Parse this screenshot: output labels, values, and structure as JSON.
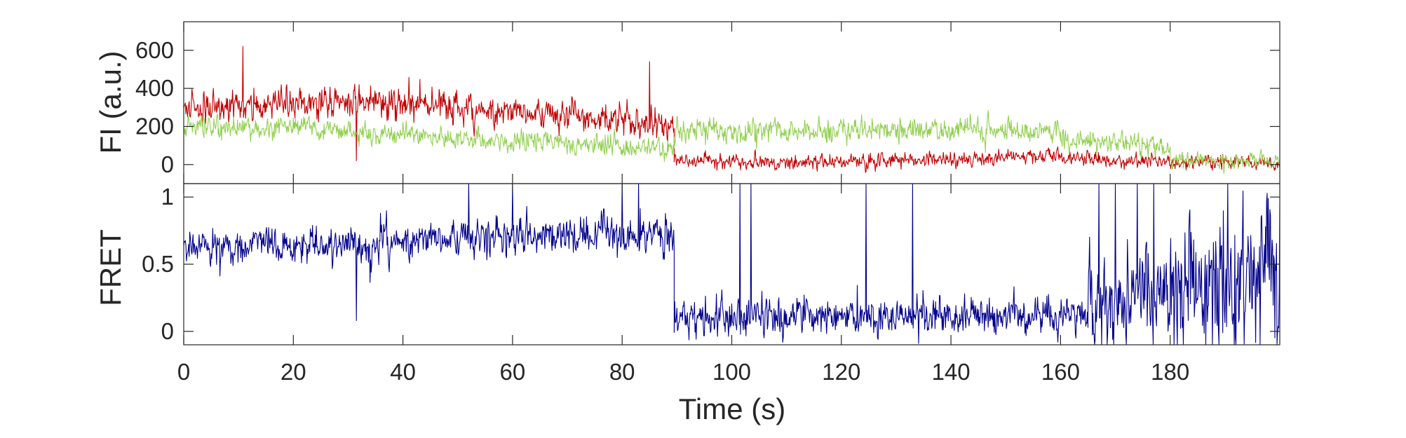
{
  "chart_data": [
    {
      "type": "line",
      "panel": "top",
      "ylabel": "FI (a.u.)",
      "xlim": [
        0,
        200
      ],
      "ylim": [
        -100,
        750
      ],
      "yticks": [
        0,
        200,
        400,
        600
      ],
      "grid": false,
      "series": [
        {
          "color": "#c00000",
          "segments": [
            {
              "x_start": 0,
              "x_end": 10,
              "mean_start": 300,
              "mean_end": 300,
              "noise": 60,
              "seed": 11
            },
            {
              "x_start": 10,
              "x_end": 30,
              "mean_start": 300,
              "mean_end": 330,
              "noise": 60,
              "seed": 12
            },
            {
              "x_start": 30,
              "x_end": 50,
              "mean_start": 330,
              "mean_end": 300,
              "noise": 60,
              "seed": 13
            },
            {
              "x_start": 50,
              "x_end": 70,
              "mean_start": 290,
              "mean_end": 250,
              "noise": 55,
              "seed": 14
            },
            {
              "x_start": 70,
              "x_end": 89.5,
              "mean_start": 250,
              "mean_end": 210,
              "noise": 55,
              "seed": 15
            },
            {
              "x_start": 89.5,
              "x_end": 110,
              "mean_start": 20,
              "mean_end": 10,
              "noise": 28,
              "seed": 16
            },
            {
              "x_start": 110,
              "x_end": 160,
              "mean_start": 10,
              "mean_end": 40,
              "noise": 28,
              "seed": 17
            },
            {
              "x_start": 160,
              "x_end": 200,
              "mean_start": 30,
              "mean_end": 0,
              "noise": 28,
              "seed": 18
            }
          ],
          "spikes": [
            [
              10.8,
              620
            ],
            [
              31.5,
              20
            ],
            [
              85,
              540
            ]
          ]
        },
        {
          "color": "#92d050",
          "segments": [
            {
              "x_start": 0,
              "x_end": 20,
              "mean_start": 200,
              "mean_end": 190,
              "noise": 40,
              "seed": 21
            },
            {
              "x_start": 20,
              "x_end": 45,
              "mean_start": 190,
              "mean_end": 150,
              "noise": 40,
              "seed": 22
            },
            {
              "x_start": 45,
              "x_end": 70,
              "mean_start": 150,
              "mean_end": 110,
              "noise": 40,
              "seed": 23
            },
            {
              "x_start": 70,
              "x_end": 89.5,
              "mean_start": 110,
              "mean_end": 80,
              "noise": 40,
              "seed": 24
            },
            {
              "x_start": 89.5,
              "x_end": 130,
              "mean_start": 170,
              "mean_end": 180,
              "noise": 45,
              "seed": 25
            },
            {
              "x_start": 130,
              "x_end": 160,
              "mean_start": 180,
              "mean_end": 180,
              "noise": 45,
              "seed": 26
            },
            {
              "x_start": 160,
              "x_end": 180,
              "mean_start": 130,
              "mean_end": 100,
              "noise": 40,
              "seed": 27
            },
            {
              "x_start": 180,
              "x_end": 200,
              "mean_start": 20,
              "mean_end": 20,
              "noise": 28,
              "seed": 28
            }
          ],
          "spikes": []
        }
      ]
    },
    {
      "type": "line",
      "panel": "bottom",
      "ylabel": "FRET",
      "xlabel": "Time (s)",
      "xlim": [
        0,
        200
      ],
      "ylim": [
        -0.1,
        1.1
      ],
      "yticks": [
        0,
        0.5,
        1
      ],
      "ytick_labels": [
        "0",
        "0.5",
        "1"
      ],
      "xticks": [
        0,
        20,
        40,
        60,
        80,
        100,
        120,
        140,
        160,
        180
      ],
      "grid": false,
      "series": [
        {
          "color": "#00008b",
          "segments": [
            {
              "x_start": 0,
              "x_end": 30,
              "mean_start": 0.62,
              "mean_end": 0.65,
              "noise": 0.09,
              "seed": 31
            },
            {
              "x_start": 30,
              "x_end": 60,
              "mean_start": 0.65,
              "mean_end": 0.7,
              "noise": 0.1,
              "seed": 32
            },
            {
              "x_start": 60,
              "x_end": 89.5,
              "mean_start": 0.7,
              "mean_end": 0.72,
              "noise": 0.11,
              "seed": 33
            },
            {
              "x_start": 89.5,
              "x_end": 165,
              "mean_start": 0.1,
              "mean_end": 0.12,
              "noise": 0.1,
              "seed": 34
            },
            {
              "x_start": 165,
              "x_end": 180,
              "mean_start": 0.2,
              "mean_end": 0.25,
              "noise": 0.25,
              "seed": 35
            },
            {
              "x_start": 180,
              "x_end": 200,
              "mean_start": 0.4,
              "mean_end": 0.4,
              "noise": 0.45,
              "seed": 36
            }
          ],
          "spikes": [
            [
              31.5,
              0.08
            ],
            [
              52,
              1.1
            ],
            [
              60,
              1.1
            ],
            [
              80,
              1.1
            ],
            [
              83,
              1.1
            ],
            [
              101.5,
              1.1
            ],
            [
              103.5,
              1.1
            ],
            [
              124.5,
              1.1
            ],
            [
              133,
              1.1
            ],
            [
              167,
              1.1
            ],
            [
              170,
              1.1
            ],
            [
              174,
              1.1
            ],
            [
              177,
              1.1
            ]
          ]
        }
      ]
    }
  ]
}
